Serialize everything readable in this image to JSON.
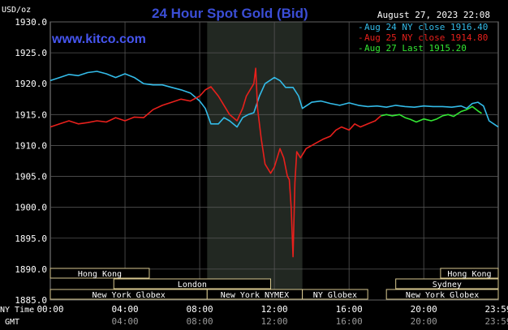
{
  "chart_data": {
    "type": "line",
    "title": "24 Hour Spot Gold (Bid)",
    "unit_label": "USD/oz",
    "brand": "www.kitco.com",
    "timestamp": "August 27, 2023 22:08",
    "ylim": [
      1885.0,
      1930.0
    ],
    "y_ticks": [
      "1930.0",
      "1925.0",
      "1920.0",
      "1915.0",
      "1910.0",
      "1905.0",
      "1900.0",
      "1895.0",
      "1890.0",
      "1885.0"
    ],
    "x_ticks_ny": [
      "00:00",
      "04:00",
      "08:00",
      "12:00",
      "16:00",
      "20:00",
      "23:59"
    ],
    "x_ticks_gmt": [
      "04:00",
      "08:00",
      "12:00",
      "16:00",
      "20:00",
      "23:59"
    ],
    "x_axis_label_ny": "NY Time",
    "x_axis_label_gmt": "GMT",
    "shaded_region_hours": [
      8.4,
      13.5
    ],
    "grid": true,
    "legend_position": "top-right",
    "markets": [
      {
        "label": "Hong Kong",
        "start": 0,
        "end": 5.3,
        "row": 0
      },
      {
        "label": "London",
        "start": 3.4,
        "end": 11.8,
        "row": 1
      },
      {
        "label": "New York Globex",
        "start": 0,
        "end": 8.4,
        "row": 2
      },
      {
        "label": "New York NYMEX",
        "start": 8.4,
        "end": 13.5,
        "row": 2
      },
      {
        "label": "NY Globex",
        "start": 13.5,
        "end": 17.0,
        "row": 2
      },
      {
        "label": "Hong Kong",
        "start": 20.9,
        "end": 23.99,
        "row": 0
      },
      {
        "label": "Sydney",
        "start": 18.5,
        "end": 23.99,
        "row": 1
      },
      {
        "label": "New York Globex",
        "start": 18.0,
        "end": 23.99,
        "row": 2
      }
    ],
    "series": [
      {
        "name": "Aug 24 NY close 1916.40",
        "color": "#33bbe8",
        "x": [
          0,
          0.5,
          1,
          1.5,
          2,
          2.5,
          3,
          3.5,
          4,
          4.5,
          5,
          5.5,
          6,
          6.5,
          7,
          7.5,
          8,
          8.3,
          8.6,
          9,
          9.3,
          9.6,
          10,
          10.3,
          10.6,
          10.9,
          11.2,
          11.5,
          12,
          12.3,
          12.6,
          13,
          13.3,
          13.5,
          14,
          14.5,
          15,
          15.5,
          16,
          16.5,
          17,
          17.5,
          18,
          18.5,
          19,
          19.5,
          20,
          20.5,
          21,
          21.5,
          22,
          22.3,
          22.6,
          22.9,
          23.2,
          23.5,
          23.99
        ],
        "y": [
          1920.5,
          1921.0,
          1921.5,
          1921.3,
          1921.8,
          1922.0,
          1921.6,
          1921.0,
          1921.6,
          1921.0,
          1920.0,
          1919.8,
          1919.8,
          1919.4,
          1919.0,
          1918.5,
          1917.2,
          1916.0,
          1913.5,
          1913.5,
          1914.5,
          1914.0,
          1913.0,
          1914.5,
          1915.0,
          1915.3,
          1918.0,
          1920.0,
          1921.0,
          1920.5,
          1919.4,
          1919.4,
          1918.0,
          1916.0,
          1917.0,
          1917.2,
          1916.8,
          1916.5,
          1916.9,
          1916.5,
          1916.3,
          1916.4,
          1916.2,
          1916.5,
          1916.3,
          1916.2,
          1916.4,
          1916.3,
          1916.3,
          1916.2,
          1916.4,
          1916.0,
          1916.8,
          1917.0,
          1916.4,
          1914.0,
          1913.0
        ]
      },
      {
        "name": "Aug 25 NY close 1914.80",
        "color": "#e8201c",
        "x": [
          0,
          0.5,
          1,
          1.5,
          2,
          2.5,
          3,
          3.5,
          4,
          4.5,
          5,
          5.5,
          6,
          6.5,
          7,
          7.5,
          8,
          8.3,
          8.6,
          9,
          9.3,
          9.6,
          10,
          10.3,
          10.5,
          10.7,
          10.9,
          11,
          11.1,
          11.3,
          11.5,
          11.8,
          12,
          12.3,
          12.5,
          12.7,
          12.8,
          12.9,
          13.0,
          13.1,
          13.2,
          13.4,
          13.7,
          14,
          14.3,
          14.6,
          15,
          15.3,
          15.6,
          16,
          16.3,
          16.6,
          17,
          17.4,
          17.7
        ],
        "y": [
          1913.0,
          1913.5,
          1914.0,
          1913.5,
          1913.7,
          1914.0,
          1913.8,
          1914.5,
          1914.0,
          1914.6,
          1914.5,
          1915.8,
          1916.5,
          1917.0,
          1917.5,
          1917.2,
          1918.0,
          1919.0,
          1919.5,
          1918.0,
          1916.5,
          1915.0,
          1914.0,
          1916.0,
          1918.0,
          1919.0,
          1920.0,
          1922.5,
          1916.0,
          1911.0,
          1907.0,
          1905.5,
          1906.5,
          1909.5,
          1908.0,
          1905.0,
          1904.5,
          1900.0,
          1892.0,
          1904.0,
          1909.0,
          1908.0,
          1909.5,
          1910.0,
          1910.5,
          1911.0,
          1911.5,
          1912.5,
          1913.0,
          1912.5,
          1913.5,
          1913.0,
          1913.5,
          1914.0,
          1914.8
        ]
      },
      {
        "name": "Aug 27 Last 1915.20",
        "color": "#33e633",
        "x": [
          17.7,
          18.0,
          18.3,
          18.7,
          19.0,
          19.3,
          19.6,
          20.0,
          20.4,
          20.7,
          21.0,
          21.3,
          21.6,
          22.0,
          22.3,
          22.6,
          22.9,
          23.1
        ],
        "y": [
          1914.8,
          1915.0,
          1914.8,
          1915.0,
          1914.5,
          1914.2,
          1913.8,
          1914.3,
          1914.0,
          1914.3,
          1914.8,
          1915.0,
          1914.7,
          1915.5,
          1915.8,
          1916.3,
          1915.6,
          1915.2
        ]
      }
    ]
  }
}
